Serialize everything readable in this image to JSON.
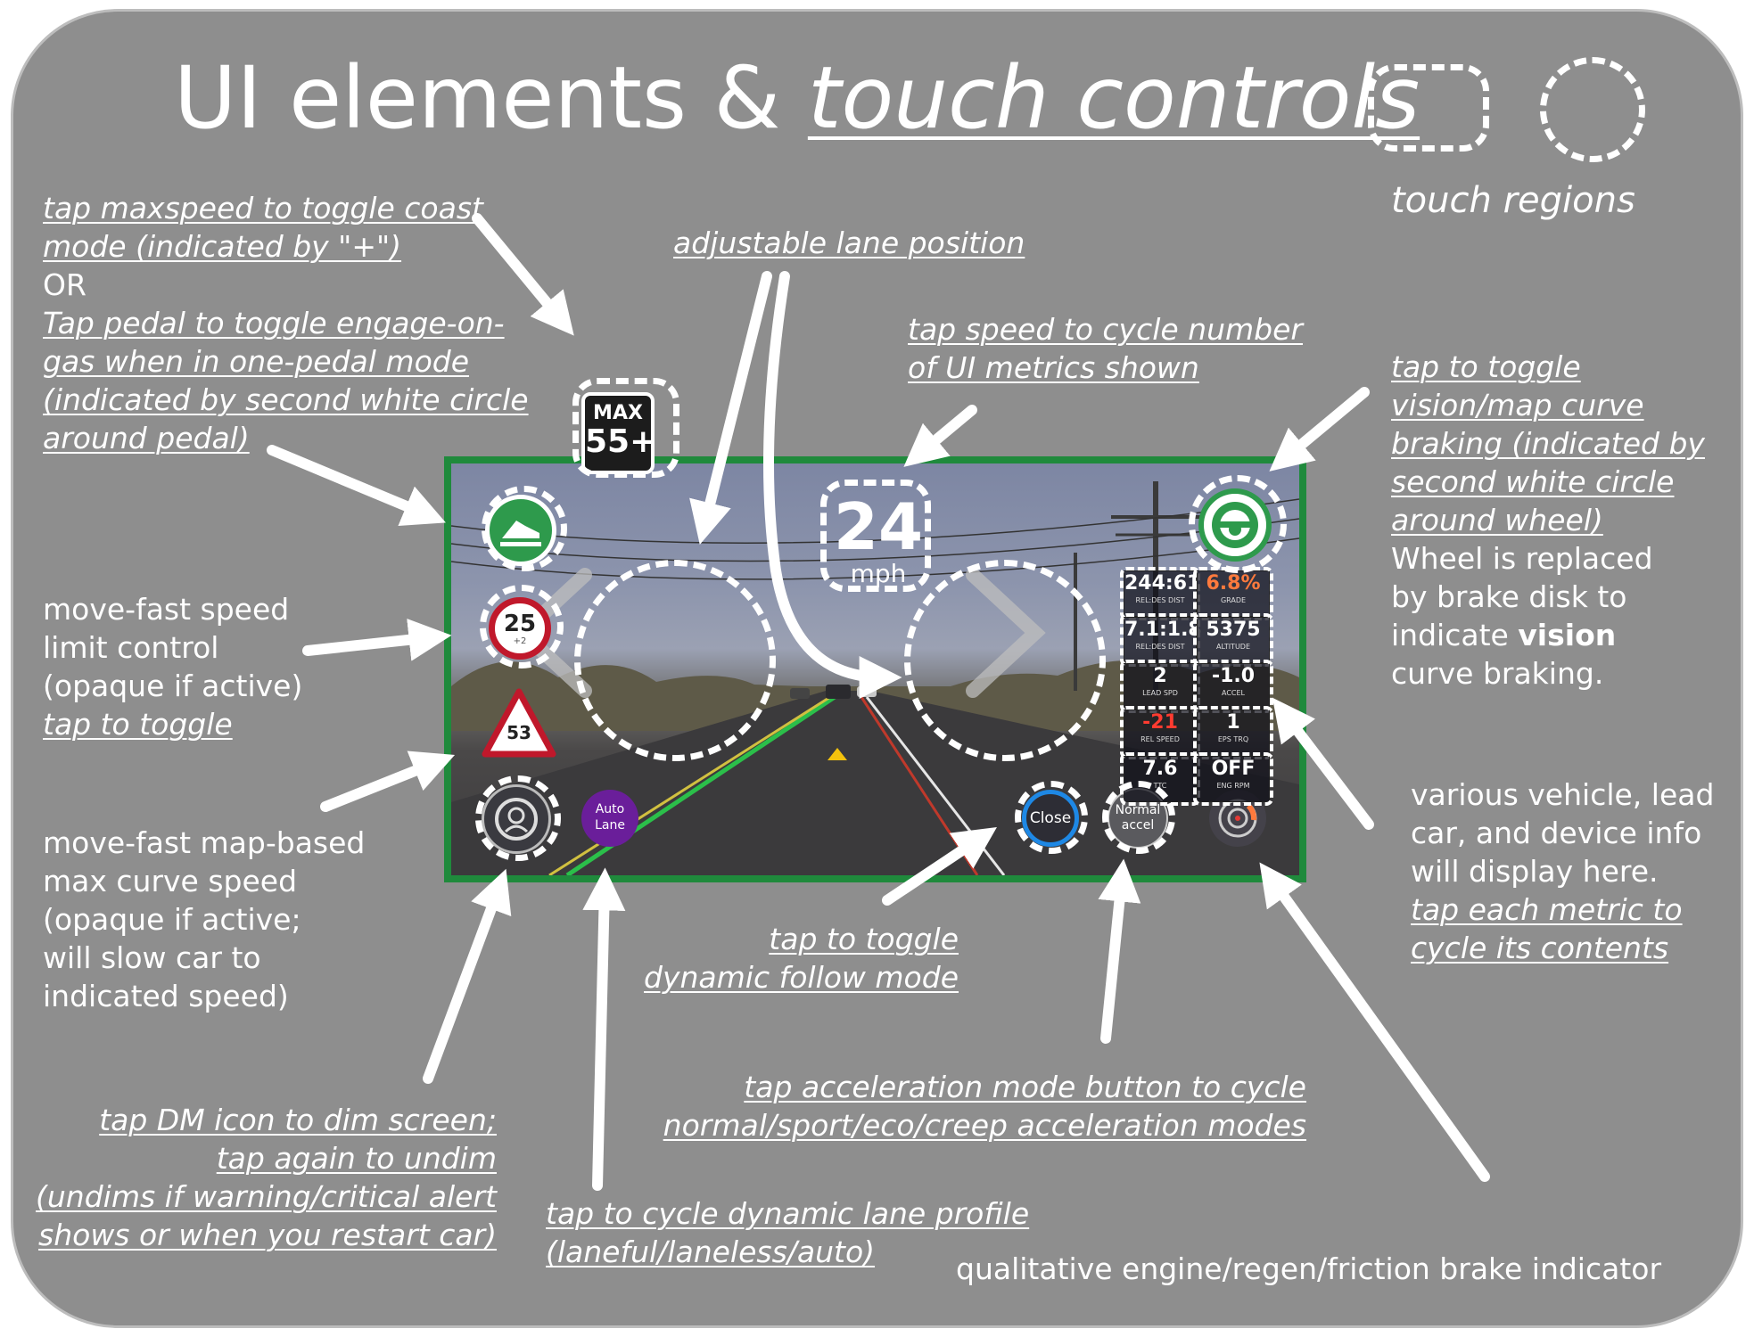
{
  "title": {
    "plain": "UI elements &",
    "emphasis": "touch controls"
  },
  "legend": {
    "label": "touch regions"
  },
  "annotations": {
    "maxspeed": {
      "line1": "tap maxspeed to toggle coast",
      "line2": "mode (indicated by \"+\")"
    },
    "or": "OR",
    "pedal": {
      "line1": "Tap pedal to toggle engage-on-",
      "line2": "gas when in one-pedal mode",
      "line3": "(indicated by second white circle",
      "line4": "around pedal)"
    },
    "lane_position": "adjustable lane position",
    "speed": {
      "line1": "tap speed to cycle number",
      "line2": "of UI metrics shown"
    },
    "wheel": {
      "line1": "tap to toggle",
      "line2": "vision/map curve",
      "line3": "braking (indicated by",
      "line4": "second white circle",
      "line5": "around wheel)",
      "line6": "Wheel is replaced",
      "line7": "by brake disk to",
      "line8_pre": "indicate ",
      "line8_bold": "vision",
      "line9": "curve braking."
    },
    "speed_limit": {
      "line1": "move-fast speed",
      "line2": "limit control",
      "line3": "(opaque if active)",
      "line4": "tap to toggle"
    },
    "curve_speed": {
      "line1": "move-fast map-based",
      "line2": "max curve speed",
      "line3": "(opaque if active;",
      "line4": "will slow car to",
      "line5": "indicated speed)"
    },
    "metrics": {
      "line1": "various vehicle, lead",
      "line2": "car, and device info",
      "line3": "will display here.",
      "line4": "tap each metric to",
      "line5": "cycle its contents"
    },
    "follow": {
      "line1": "tap to toggle",
      "line2": "dynamic follow mode"
    },
    "accel": {
      "line1": "tap acceleration mode button to cycle",
      "line2": "normal/sport/eco/creep acceleration modes"
    },
    "dm": {
      "line1": "tap DM icon to dim screen;",
      "line2": "tap again to undim",
      "line3": "(undims if warning/critical alert",
      "line4": "shows or when you restart car)"
    },
    "lane_profile": {
      "line1": "tap to cycle dynamic lane profile",
      "line2": "(laneful/laneless/auto)"
    },
    "brake_indicator": "qualitative engine/regen/friction brake indicator"
  },
  "ui": {
    "max_sign": {
      "label": "MAX",
      "value": "55+"
    },
    "speed": {
      "value": "24",
      "unit": "mph"
    },
    "speed_limit": {
      "value": "25",
      "sub": "+2"
    },
    "curve_speed": {
      "value": "53"
    },
    "buttons": {
      "auto_lane_1": "Auto",
      "auto_lane_2": "Lane",
      "close": "Close",
      "accel_1": "Normal",
      "accel_2": "accel"
    },
    "metrics": [
      {
        "value": "244:61",
        "label": "REL:DES DIST"
      },
      {
        "value": "6.8%",
        "label": "GRADE"
      },
      {
        "value": "7.1:1.8",
        "label": "REL:DES DIST"
      },
      {
        "value": "5375",
        "label": "ALTITUDE"
      },
      {
        "value": "2",
        "label": "LEAD SPD"
      },
      {
        "value": "-1.0",
        "label": "ACCEL"
      },
      {
        "value": "-21",
        "label": "REL SPEED"
      },
      {
        "value": "1",
        "label": "EPS TRQ"
      },
      {
        "value": "7.6",
        "label": "TTC"
      },
      {
        "value": "OFF",
        "label": "ENG RPM"
      }
    ]
  },
  "colors": {
    "panel": "#8e8e8e",
    "screen_border": "#1f8a3c",
    "pedal_badge": "#2e9a4c",
    "speed_limit_ring": "#c0182b",
    "auto_lane": "#6a1e9a",
    "close_ring": "#1e88e5",
    "metric_red": "#ff3b30",
    "metric_orange": "#ff7a3d"
  },
  "icons": [
    "pedal-icon",
    "steering-wheel-icon",
    "brake-disk-icon",
    "driver-monitor-icon",
    "left-chevron-icon",
    "right-chevron-icon",
    "curve-warning-sign-icon",
    "lead-car-triangle-icon"
  ]
}
